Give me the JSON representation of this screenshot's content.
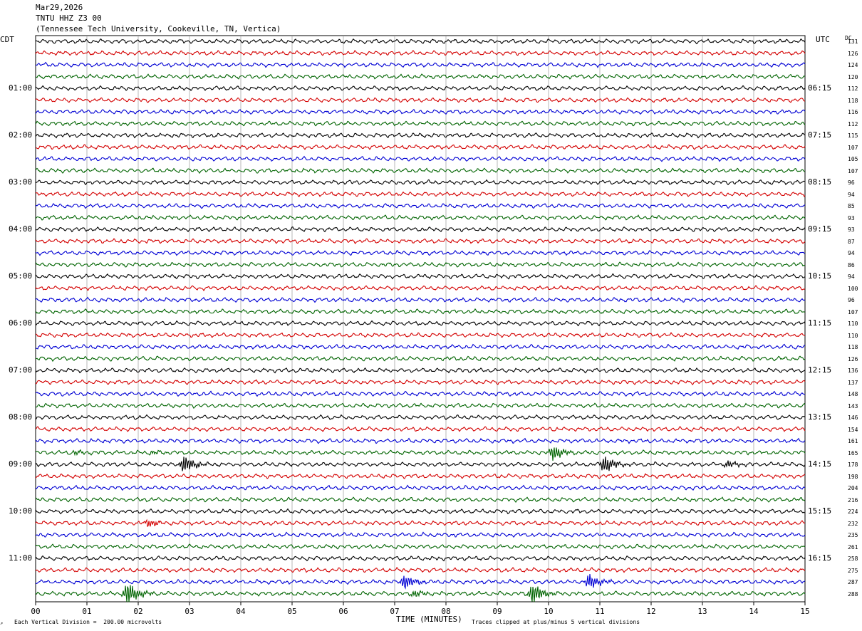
{
  "header": {
    "date": "Mar29,2026",
    "station": "TNTU HHZ Z3 00",
    "location": "(Tennessee Tech University, Cookeville, TN, Vertica)"
  },
  "left_axis_label": "CDT",
  "right_axis_label": "UTC",
  "dc_label": "DC",
  "left_times": [
    "01:00",
    "02:00",
    "03:00",
    "04:00",
    "05:00",
    "06:00",
    "07:00",
    "08:00",
    "09:00",
    "10:00",
    "11:00"
  ],
  "right_times": [
    "06:15",
    "07:15",
    "08:15",
    "09:15",
    "10:15",
    "11:15",
    "12:15",
    "13:15",
    "14:15",
    "15:15",
    "16:15"
  ],
  "footer": {
    "scale": "Each Vertical Division =  200.00 microvolts",
    "xlabel": "TIME (MINUTES)",
    "clip_note": "Traces clipped at plus/minus 5 vertical divisions"
  },
  "colors": {
    "trace_cycle": [
      "#000000",
      "#d40000",
      "#0000d4",
      "#006400"
    ],
    "grid": "#888888"
  },
  "chart_data": {
    "type": "line",
    "title": "TNTU HHZ Z3 00",
    "xlabel": "TIME (MINUTES)",
    "x_ticks": [
      "00",
      "01",
      "02",
      "03",
      "04",
      "05",
      "06",
      "07",
      "08",
      "09",
      "10",
      "11",
      "12",
      "13",
      "14",
      "15"
    ],
    "xlim": [
      0,
      15
    ],
    "trace_count": 48,
    "dc_offsets": [
      131,
      126,
      124,
      120,
      112,
      118,
      116,
      112,
      115,
      107,
      105,
      107,
      96,
      94,
      85,
      93,
      93,
      87,
      94,
      86,
      94,
      100,
      96,
      107,
      110,
      110,
      118,
      126,
      136,
      137,
      148,
      143,
      146,
      154,
      161,
      165,
      178,
      198,
      204,
      216,
      224,
      232,
      235,
      261,
      258,
      275,
      287,
      288
    ],
    "events": [
      {
        "trace": 35,
        "minute": 0.8,
        "amplitude": 0.5
      },
      {
        "trace": 35,
        "minute": 2.3,
        "amplitude": 0.5
      },
      {
        "trace": 35,
        "minute": 10.1,
        "amplitude": 2.0
      },
      {
        "trace": 36,
        "minute": 2.9,
        "amplitude": 2.2
      },
      {
        "trace": 36,
        "minute": 11.1,
        "amplitude": 2.2
      },
      {
        "trace": 36,
        "minute": 13.5,
        "amplitude": 0.8
      },
      {
        "trace": 41,
        "minute": 2.2,
        "amplitude": 0.9
      },
      {
        "trace": 46,
        "minute": 7.2,
        "amplitude": 1.9
      },
      {
        "trace": 46,
        "minute": 10.8,
        "amplitude": 1.9
      },
      {
        "trace": 47,
        "minute": 1.8,
        "amplitude": 3.0
      },
      {
        "trace": 47,
        "minute": 7.4,
        "amplitude": 0.8
      },
      {
        "trace": 47,
        "minute": 9.7,
        "amplitude": 2.6
      }
    ]
  }
}
